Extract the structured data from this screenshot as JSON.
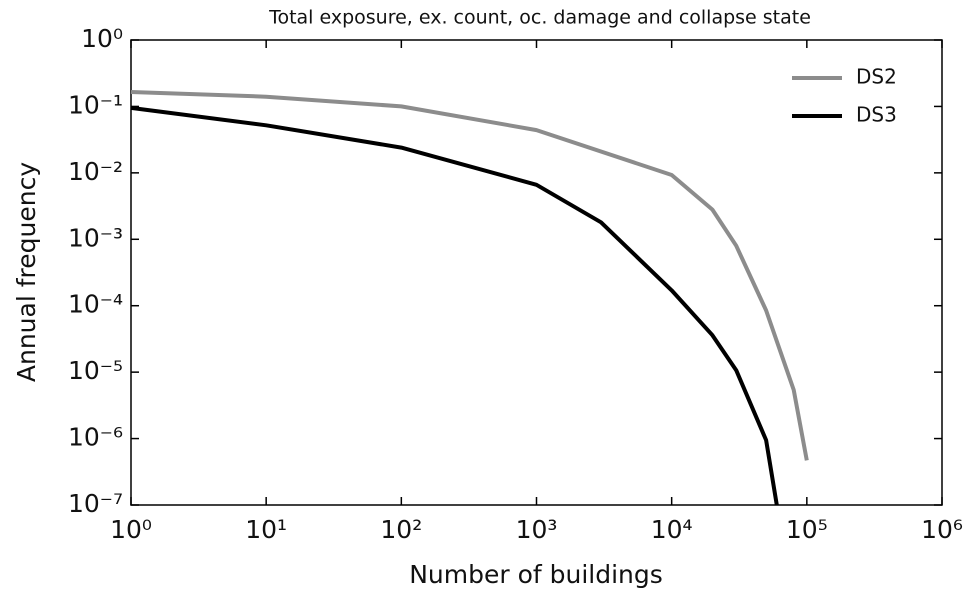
{
  "chart_data": {
    "type": "line",
    "title": "Total exposure, ex. count, oc. damage and collapse state",
    "xlabel": "Number of buildings",
    "ylabel": "Annual frequency",
    "xscale": "log",
    "yscale": "log",
    "xlim": [
      1,
      1000000
    ],
    "ylim": [
      1e-07,
      1
    ],
    "xticks": [
      {
        "value": 1,
        "label": "10⁰"
      },
      {
        "value": 10,
        "label": "10¹"
      },
      {
        "value": 100,
        "label": "10²"
      },
      {
        "value": 1000,
        "label": "10³"
      },
      {
        "value": 10000,
        "label": "10⁴"
      },
      {
        "value": 100000,
        "label": "10⁵"
      },
      {
        "value": 1000000,
        "label": "10⁶"
      }
    ],
    "yticks": [
      {
        "value": 1e-07,
        "label": "10⁻⁷"
      },
      {
        "value": 1e-06,
        "label": "10⁻⁶"
      },
      {
        "value": 1e-05,
        "label": "10⁻⁵"
      },
      {
        "value": 0.0001,
        "label": "10⁻⁴"
      },
      {
        "value": 0.001,
        "label": "10⁻³"
      },
      {
        "value": 0.01,
        "label": "10⁻²"
      },
      {
        "value": 0.1,
        "label": "10⁻¹"
      },
      {
        "value": 1,
        "label": "10⁰"
      }
    ],
    "grid": false,
    "legend": "upper right",
    "series": [
      {
        "name": "DS2",
        "color": "#8c8c8c",
        "x": [
          1,
          10,
          100,
          1000,
          10000,
          20000,
          30000,
          50000,
          80000,
          100000
        ],
        "values": [
          0.165,
          0.14,
          0.1,
          0.044,
          0.0093,
          0.0028,
          0.0008,
          8.5e-05,
          5.4e-06,
          4.7e-07
        ]
      },
      {
        "name": "DS3",
        "color": "#000000",
        "x": [
          1,
          10,
          100,
          1000,
          3000,
          10000,
          20000,
          30000,
          50000,
          60000
        ],
        "values": [
          0.095,
          0.052,
          0.024,
          0.0066,
          0.0018,
          0.00017,
          3.6e-05,
          1.07e-05,
          9.5e-07,
          1e-07
        ]
      }
    ]
  }
}
